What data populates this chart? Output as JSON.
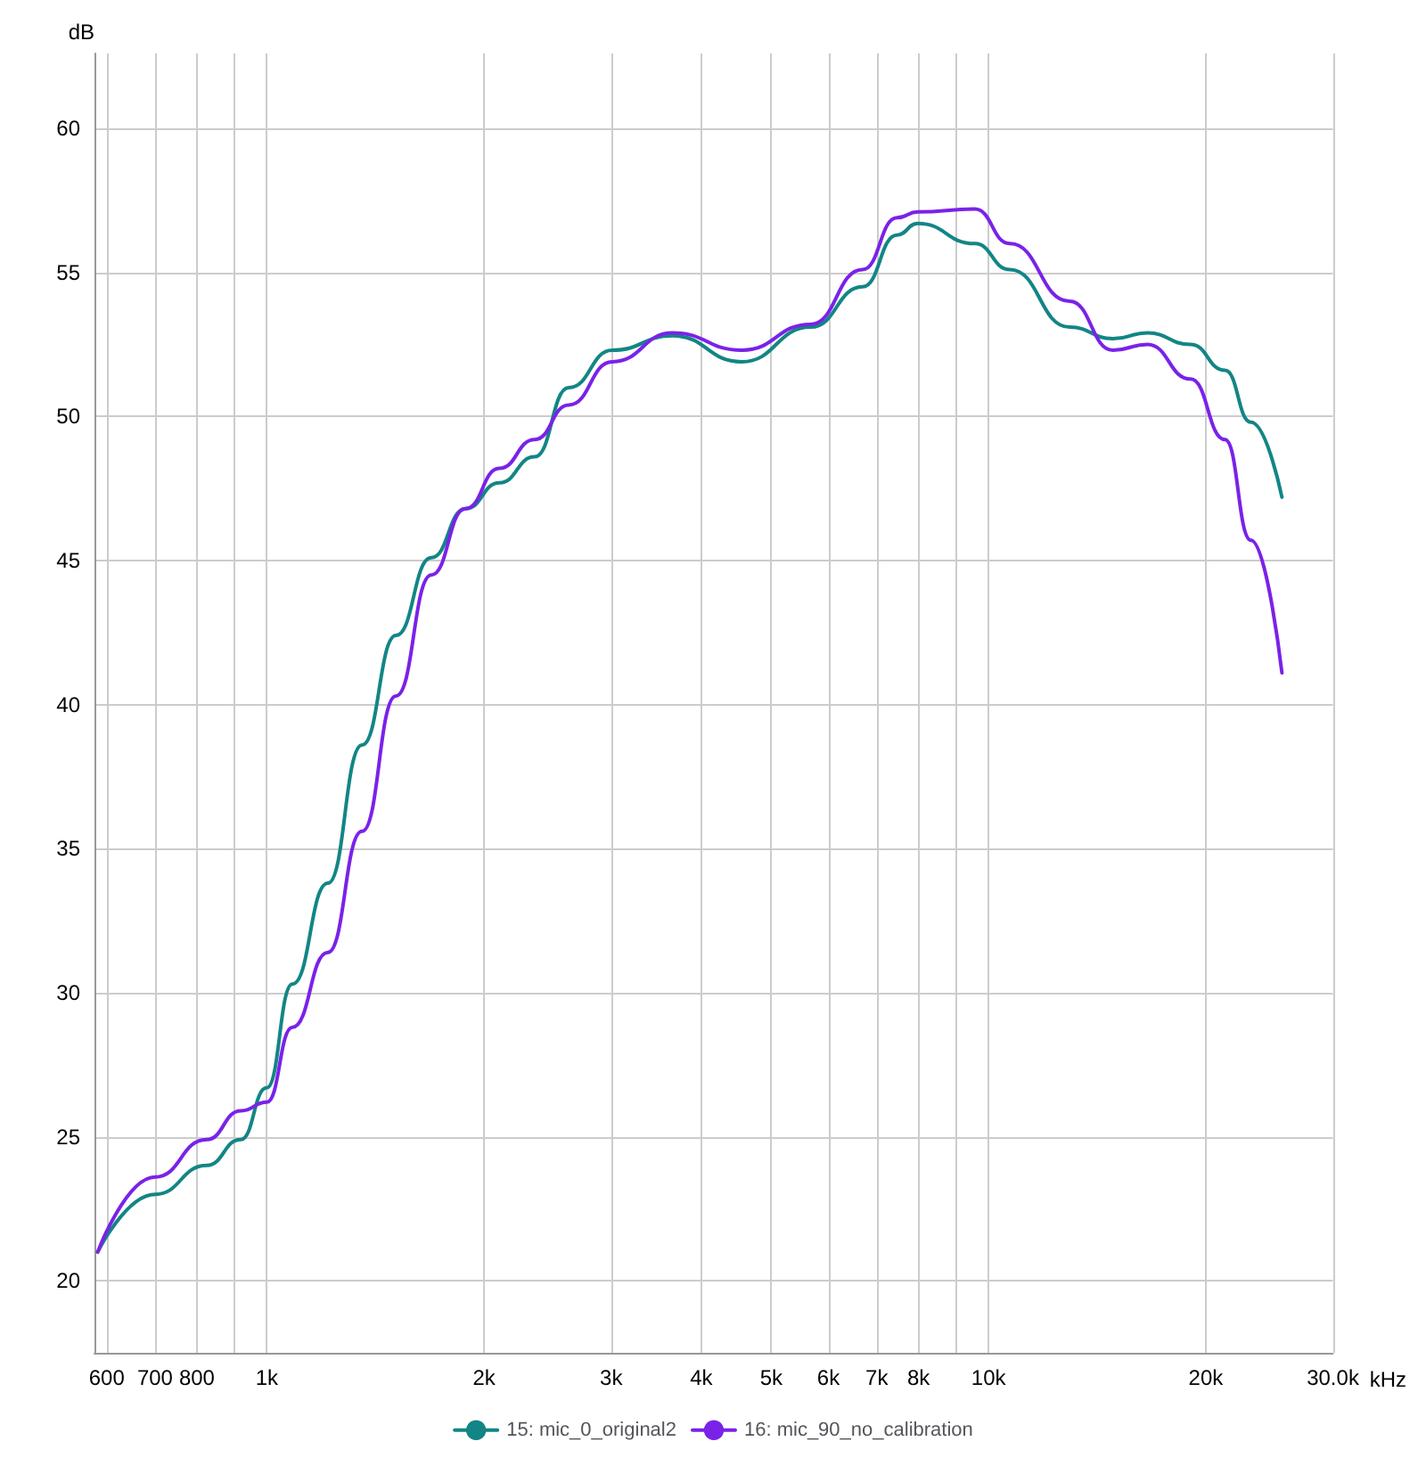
{
  "chart_data": {
    "type": "line",
    "ylabel": "dB",
    "log": "x",
    "grid": true,
    "legend": "bottom",
    "marker": "none",
    "line_style": "solid",
    "x": [
      583,
      700,
      825,
      920,
      1000,
      1085,
      1215,
      1355,
      1510,
      1690,
      1885,
      2100,
      2350,
      2620,
      3010,
      3650,
      4550,
      5670,
      6690,
      7470,
      7980,
      9570,
      10700,
      12950,
      14870,
      16600,
      19050,
      21270,
      23100,
      25500
    ],
    "series": [
      {
        "name": "15: mic_0_original2",
        "color": "#138585",
        "values": [
          21.0,
          23.0,
          24.0,
          24.9,
          26.7,
          30.3,
          33.8,
          38.6,
          42.4,
          45.1,
          46.8,
          47.7,
          48.6,
          51.0,
          52.3,
          52.8,
          51.9,
          53.1,
          54.5,
          56.3,
          56.7,
          56.0,
          55.1,
          53.1,
          52.7,
          52.9,
          52.5,
          51.6,
          49.8,
          47.2
        ]
      },
      {
        "name": "16: mic_90_no_calibration",
        "color": "#7a22e8",
        "values": [
          21.0,
          23.6,
          24.9,
          25.9,
          26.2,
          28.8,
          31.4,
          35.6,
          40.3,
          44.5,
          46.8,
          48.2,
          49.2,
          50.4,
          51.9,
          52.9,
          52.3,
          53.2,
          55.1,
          56.9,
          57.1,
          57.2,
          56.0,
          54.0,
          52.3,
          52.5,
          51.3,
          49.2,
          45.7,
          41.1
        ]
      }
    ],
    "xlim": [
      577,
      30000
    ],
    "xticks": [
      600,
      700,
      800,
      {
        "value": 900,
        "label": null
      },
      {
        "value": 1000,
        "label": "1k"
      },
      {
        "value": 2000,
        "label": "2k"
      },
      {
        "value": 3000,
        "label": "3k"
      },
      {
        "value": 4000,
        "label": "4k"
      },
      {
        "value": 5000,
        "label": "5k"
      },
      {
        "value": 6000,
        "label": "6k"
      },
      {
        "value": 7000,
        "label": "7k"
      },
      {
        "value": 8000,
        "label": "8k"
      },
      {
        "value": 9000,
        "label": null
      },
      {
        "value": 10000,
        "label": "10k"
      },
      {
        "value": 20000,
        "label": "20k"
      },
      {
        "value": 30000,
        "label": "30.0k"
      }
    ],
    "xlabel": "kHz",
    "ylim": [
      17.5,
      62.6
    ],
    "yticks": [
      20,
      25,
      30,
      35,
      40,
      45,
      50,
      55,
      60
    ]
  }
}
